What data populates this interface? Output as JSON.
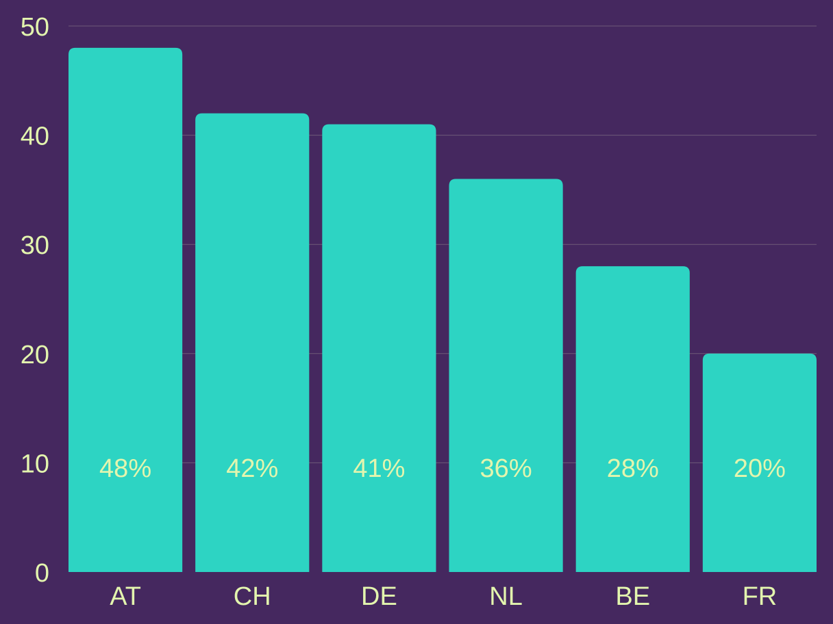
{
  "colors": {
    "background": "#45285f",
    "bar": "#2dd4c3",
    "text": "#e3f5ae",
    "grid": "#6e5a78"
  },
  "chart_data": {
    "type": "bar",
    "categories": [
      "AT",
      "CH",
      "DE",
      "NL",
      "BE",
      "FR"
    ],
    "values": [
      48,
      42,
      41,
      36,
      28,
      20
    ],
    "data_labels": [
      "48%",
      "42%",
      "41%",
      "36%",
      "28%",
      "20%"
    ],
    "title": "",
    "xlabel": "",
    "ylabel": "",
    "ylim": [
      0,
      50
    ],
    "yticks": [
      0,
      10,
      20,
      30,
      40,
      50
    ],
    "grid": true,
    "legend": "none"
  }
}
